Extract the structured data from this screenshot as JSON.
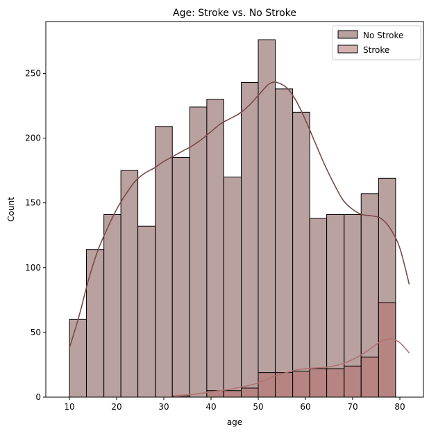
{
  "chart_data": {
    "type": "bar",
    "title": "Age: Stroke vs. No Stroke",
    "xlabel": "age",
    "ylabel": "Count",
    "xlim": [
      5,
      85
    ],
    "ylim": [
      0,
      290
    ],
    "xticks": [
      10,
      20,
      30,
      40,
      50,
      60,
      70,
      80
    ],
    "yticks": [
      0,
      50,
      100,
      150,
      200,
      250
    ],
    "legend_placement": "top-right",
    "grid": false,
    "series": [
      {
        "name": "No Stroke",
        "color": "#a88988",
        "bins": [
          {
            "x0": 10.0,
            "x1": 13.6,
            "count": 60
          },
          {
            "x0": 13.6,
            "x1": 17.3,
            "count": 114
          },
          {
            "x0": 17.3,
            "x1": 20.9,
            "count": 141
          },
          {
            "x0": 20.9,
            "x1": 24.5,
            "count": 175
          },
          {
            "x0": 24.5,
            "x1": 28.2,
            "count": 132
          },
          {
            "x0": 28.2,
            "x1": 31.8,
            "count": 209
          },
          {
            "x0": 31.8,
            "x1": 35.5,
            "count": 185
          },
          {
            "x0": 35.5,
            "x1": 39.1,
            "count": 224
          },
          {
            "x0": 39.1,
            "x1": 42.7,
            "count": 230
          },
          {
            "x0": 42.7,
            "x1": 46.4,
            "count": 170
          },
          {
            "x0": 46.4,
            "x1": 50.0,
            "count": 243
          },
          {
            "x0": 50.0,
            "x1": 53.6,
            "count": 276
          },
          {
            "x0": 53.6,
            "x1": 57.3,
            "count": 238
          },
          {
            "x0": 57.3,
            "x1": 60.9,
            "count": 220
          },
          {
            "x0": 60.9,
            "x1": 64.5,
            "count": 138
          },
          {
            "x0": 64.5,
            "x1": 68.2,
            "count": 141
          },
          {
            "x0": 68.2,
            "x1": 71.8,
            "count": 141
          },
          {
            "x0": 71.8,
            "x1": 75.5,
            "count": 157
          },
          {
            "x0": 75.5,
            "x1": 79.1,
            "count": 169
          }
        ],
        "kde": {
          "x": [
            10,
            12,
            14,
            16,
            18,
            20,
            22,
            24,
            26,
            28,
            30,
            32,
            34,
            36,
            38,
            40,
            42,
            44,
            46,
            48,
            50,
            52,
            53,
            54,
            56,
            58,
            60,
            62,
            64,
            66,
            68,
            70,
            72,
            74,
            76,
            78,
            80,
            82
          ],
          "y": [
            38,
            62,
            90,
            113,
            130,
            145,
            157,
            167,
            173,
            177,
            182,
            186,
            190,
            194,
            199,
            205,
            211,
            215,
            219,
            225,
            233,
            241,
            243,
            243,
            239,
            229,
            214,
            197,
            180,
            165,
            152,
            145,
            141,
            140,
            138,
            130,
            115,
            87
          ]
        }
      },
      {
        "name": "Stroke",
        "color": "#b57f7c",
        "bins": [
          {
            "x0": 32.0,
            "x1": 35.5,
            "count": 1
          },
          {
            "x0": 35.5,
            "x1": 39.1,
            "count": 0
          },
          {
            "x0": 39.1,
            "x1": 42.7,
            "count": 5
          },
          {
            "x0": 42.7,
            "x1": 46.4,
            "count": 5
          },
          {
            "x0": 46.4,
            "x1": 50.0,
            "count": 7
          },
          {
            "x0": 50.0,
            "x1": 53.6,
            "count": 19
          },
          {
            "x0": 53.6,
            "x1": 57.3,
            "count": 19
          },
          {
            "x0": 57.3,
            "x1": 60.9,
            "count": 20
          },
          {
            "x0": 60.9,
            "x1": 64.5,
            "count": 22
          },
          {
            "x0": 64.5,
            "x1": 68.2,
            "count": 22
          },
          {
            "x0": 68.2,
            "x1": 71.8,
            "count": 24
          },
          {
            "x0": 71.8,
            "x1": 75.5,
            "count": 31
          },
          {
            "x0": 75.5,
            "x1": 79.1,
            "count": 73
          }
        ],
        "kde": {
          "x": [
            32,
            34,
            36,
            38,
            40,
            42,
            44,
            46,
            48,
            50,
            52,
            54,
            56,
            58,
            60,
            62,
            64,
            66,
            68,
            70,
            72,
            74,
            76,
            78,
            80,
            82
          ],
          "y": [
            1,
            1.5,
            2,
            3,
            4,
            5,
            6,
            7.5,
            9,
            11,
            14,
            17,
            19,
            21,
            22,
            22.5,
            23,
            24,
            26,
            29,
            33,
            38,
            43,
            45,
            42,
            34
          ]
        }
      }
    ],
    "colors": {
      "no_stroke_fill": "#a88988",
      "no_stroke_kde": "#7a4a48",
      "stroke_fill": "#b57f7c",
      "stroke_kde": "#b07470",
      "bar_edge": "#000000"
    }
  }
}
